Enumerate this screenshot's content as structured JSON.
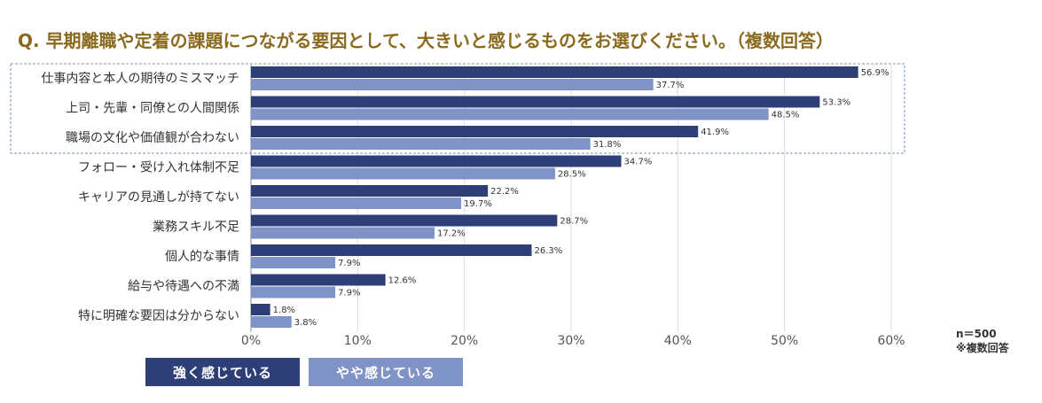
{
  "title": "Q. 早期離職や定着の課題につながる要因として、大きいと感じるものをお選びください。（複数回答）",
  "note": {
    "n": "n＝500",
    "multi": "※複数回答"
  },
  "colors": {
    "strong": "#2e3f78",
    "somewhat": "#7f93c6",
    "title": "#8a6a1e",
    "highlight_border": "#7a94b0"
  },
  "chart_data": {
    "type": "bar",
    "orientation": "horizontal",
    "categories": [
      "仕事内容と本人の期待のミスマッチ",
      "上司・先輩・同僚との人間関係",
      "職場の文化や価値観が合わない",
      "フォロー・受け入れ体制不足",
      "キャリアの見通しが持てない",
      "業務スキル不足",
      "個人的な事情",
      "給与や待遇への不満",
      "特に明確な要因は分からない"
    ],
    "series": [
      {
        "name": "強く感じている",
        "values": [
          56.9,
          53.3,
          41.9,
          34.7,
          22.2,
          28.7,
          26.3,
          12.6,
          1.8
        ]
      },
      {
        "name": "やや感じている",
        "values": [
          37.7,
          48.5,
          31.8,
          28.5,
          19.7,
          17.2,
          7.9,
          7.9,
          3.8
        ]
      }
    ],
    "xlim": [
      0,
      60
    ],
    "ticks": [
      "0%",
      "10%",
      "20%",
      "30%",
      "40%",
      "50%",
      "60%"
    ],
    "value_suffix": "%",
    "highlighted_categories": 3,
    "grid": true,
    "legend_position": "bottom-left"
  }
}
